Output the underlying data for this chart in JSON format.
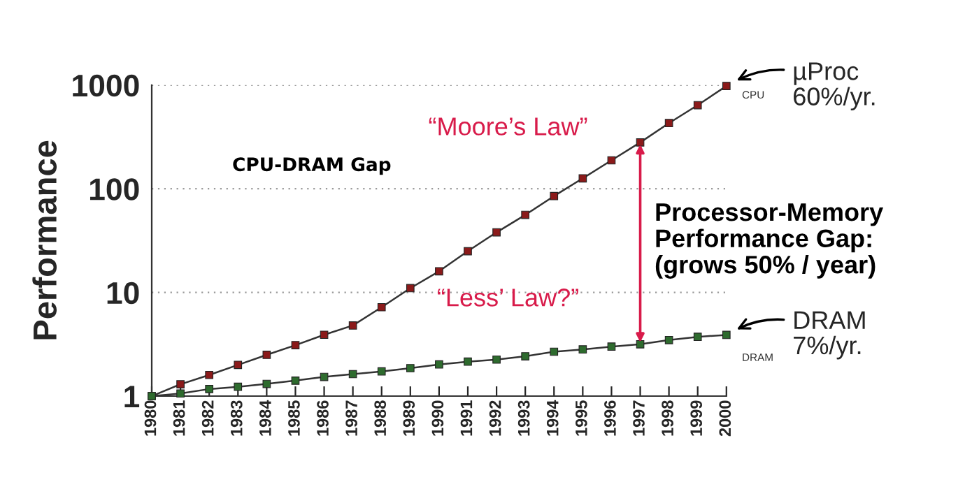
{
  "chart_data": {
    "type": "line",
    "ylabel": "Performance",
    "log": "y",
    "grid": "y",
    "legend": false,
    "marker": "square",
    "line_style": "solid",
    "x": [
      1980,
      1981,
      1982,
      1983,
      1984,
      1985,
      1986,
      1987,
      1988,
      1989,
      1990,
      1991,
      1992,
      1993,
      1994,
      1995,
      1996,
      1997,
      1998,
      1999,
      2000
    ],
    "xlim": [
      1980,
      2000
    ],
    "xticks": [
      1980,
      1981,
      1982,
      1983,
      1984,
      1985,
      1986,
      1987,
      1988,
      1989,
      1990,
      1991,
      1992,
      1993,
      1994,
      1995,
      1996,
      1997,
      1998,
      1999,
      2000
    ],
    "ylim": [
      1,
      1000
    ],
    "yticks": [
      1,
      10,
      100,
      1000
    ],
    "series": [
      {
        "name": "CPU",
        "color": "#8b1a1a",
        "values": [
          1,
          1.3,
          1.6,
          2,
          2.5,
          3.1,
          3.9,
          4.8,
          7.2,
          11,
          16,
          25,
          38,
          56,
          85,
          126,
          188,
          280,
          430,
          640,
          980
        ]
      },
      {
        "name": "DRAM",
        "color": "#2e6b2e",
        "values": [
          1,
          1.06,
          1.17,
          1.23,
          1.31,
          1.41,
          1.53,
          1.63,
          1.73,
          1.86,
          2.02,
          2.15,
          2.25,
          2.42,
          2.68,
          2.82,
          3.0,
          3.16,
          3.47,
          3.73,
          3.89
        ]
      }
    ],
    "annotations": [
      "CPU-DRAM Gap",
      "“Moore’s Law”",
      "“Less’ Law?”",
      "Processor-Memory\nPerformance Gap:\n(grows 50% / year)",
      {
        "text": "µProc\n60%/yr.",
        "x": 2000,
        "y": 980
      },
      {
        "text": "DRAM\n7%/yr.",
        "x": 2000,
        "y": 3.89
      }
    ]
  }
}
